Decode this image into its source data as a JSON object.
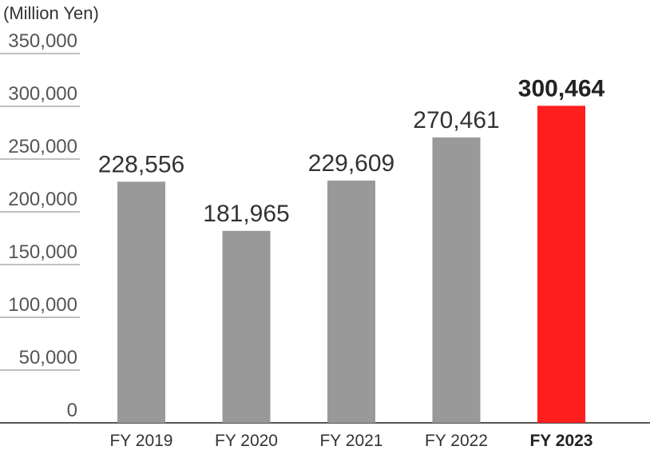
{
  "chart_data": {
    "type": "bar",
    "unit_label": "(Million Yen)",
    "categories": [
      "FY 2019",
      "FY 2020",
      "FY 2021",
      "FY 2022",
      "FY 2023"
    ],
    "values": [
      228556,
      181965,
      229609,
      270461,
      300464
    ],
    "value_labels": [
      "228,556",
      "181,965",
      "229,609",
      "270,461",
      "300,464"
    ],
    "highlight_index": 4,
    "yticks": [
      0,
      50000,
      100000,
      150000,
      200000,
      250000,
      300000,
      350000
    ],
    "ytick_labels": [
      "0",
      "50,000",
      "100,000",
      "150,000",
      "200,000",
      "250,000",
      "300,000",
      "350,000"
    ],
    "ylim": [
      0,
      350000
    ],
    "grid": false,
    "colors": {
      "bar": "#999999",
      "highlight": "#ff1e1e",
      "tick_line": "#aaaaaa",
      "axis": "#555555"
    }
  }
}
